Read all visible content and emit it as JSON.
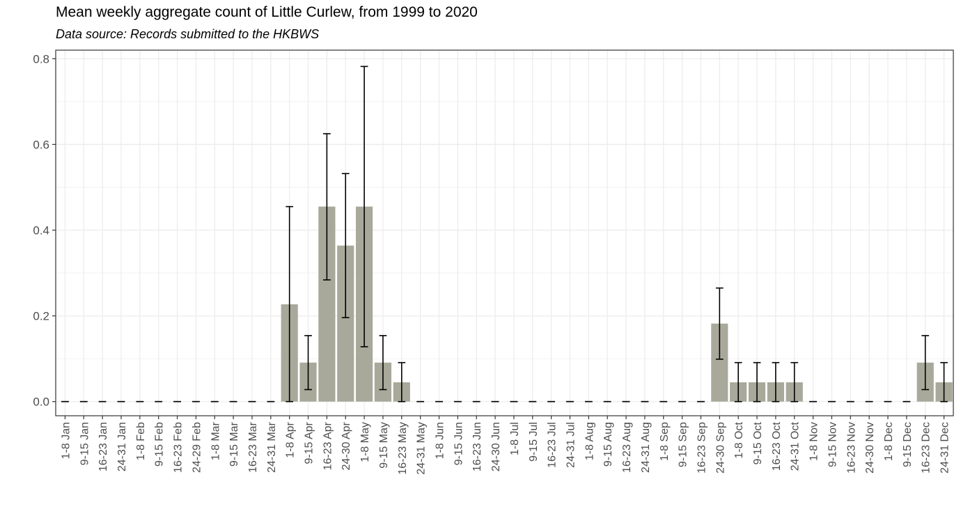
{
  "chart_data": {
    "type": "bar",
    "title": "Mean weekly aggregate count of Little Curlew, from 1999 to 2020",
    "subtitle": "Data source: Records submitted to the HKBWS",
    "xlabel": "",
    "ylabel": "",
    "ylim": [
      -0.033,
      0.82
    ],
    "yticks": [
      0.0,
      0.2,
      0.4,
      0.6,
      0.8
    ],
    "ytick_labels": [
      "0.0",
      "0.2",
      "0.4",
      "0.6",
      "0.8"
    ],
    "grid": true,
    "bar_color": "#a8a99a",
    "categories": [
      "1-8 Jan",
      "9-15 Jan",
      "16-23 Jan",
      "24-31 Jan",
      "1-8 Feb",
      "9-15 Feb",
      "16-23 Feb",
      "24-29 Feb",
      "1-8 Mar",
      "9-15 Mar",
      "16-23 Mar",
      "24-31 Mar",
      "1-8 Apr",
      "9-15 Apr",
      "16-23 Apr",
      "24-30 Apr",
      "1-8 May",
      "9-15 May",
      "16-23 May",
      "24-31 May",
      "1-8 Jun",
      "9-15 Jun",
      "16-23 Jun",
      "24-30 Jun",
      "1-8 Jul",
      "9-15 Jul",
      "16-23 Jul",
      "24-31 Jul",
      "1-8 Aug",
      "9-15 Aug",
      "16-23 Aug",
      "24-31 Aug",
      "1-8 Sep",
      "9-15 Sep",
      "16-23 Sep",
      "24-30 Sep",
      "1-8 Oct",
      "9-15 Oct",
      "16-23 Oct",
      "24-31 Oct",
      "1-8 Nov",
      "9-15 Nov",
      "16-23 Nov",
      "24-30 Nov",
      "1-8 Dec",
      "9-15 Dec",
      "16-23 Dec",
      "24-31 Dec"
    ],
    "values": [
      0,
      0,
      0,
      0,
      0,
      0,
      0,
      0,
      0,
      0,
      0,
      0,
      0.227,
      0.091,
      0.455,
      0.364,
      0.455,
      0.091,
      0.045,
      0,
      0,
      0,
      0,
      0,
      0,
      0,
      0,
      0,
      0,
      0,
      0,
      0,
      0,
      0,
      0,
      0.182,
      0.045,
      0.045,
      0.045,
      0.045,
      0,
      0,
      0,
      0,
      0,
      0,
      0.091,
      0.045
    ],
    "error_low": [
      0,
      0,
      0,
      0,
      0,
      0,
      0,
      0,
      0,
      0,
      0,
      0,
      0,
      0.028,
      0.284,
      0.196,
      0.128,
      0.028,
      0,
      0,
      0,
      0,
      0,
      0,
      0,
      0,
      0,
      0,
      0,
      0,
      0,
      0,
      0,
      0,
      0,
      0.099,
      0,
      0,
      0,
      0,
      0,
      0,
      0,
      0,
      0,
      0,
      0.028,
      0
    ],
    "error_high": [
      0,
      0,
      0,
      0,
      0,
      0,
      0,
      0,
      0,
      0,
      0,
      0,
      0.455,
      0.154,
      0.625,
      0.532,
      0.782,
      0.154,
      0.091,
      0,
      0,
      0,
      0,
      0,
      0,
      0,
      0,
      0,
      0,
      0,
      0,
      0,
      0,
      0,
      0,
      0.265,
      0.091,
      0.091,
      0.091,
      0.091,
      0,
      0,
      0,
      0,
      0,
      0,
      0.154,
      0.091
    ]
  }
}
